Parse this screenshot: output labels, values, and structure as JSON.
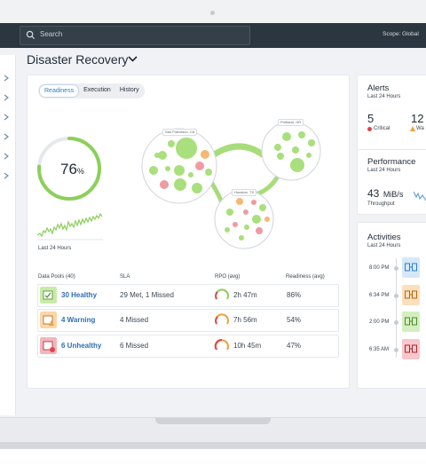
{
  "header": {
    "search_placeholder": "Search",
    "scope": "Scope: Global"
  },
  "page": {
    "title": "Disaster Recovery"
  },
  "tabs": [
    {
      "label": "Readiness",
      "active": true
    },
    {
      "label": "Execution",
      "active": false
    },
    {
      "label": "History",
      "active": false
    }
  ],
  "readiness": {
    "percent_value": "76",
    "percent_sign": "%",
    "percent": 76,
    "period_label": "Last 24 Hours"
  },
  "sites": [
    {
      "label": "San Francisco, CA"
    },
    {
      "label": "Portland, OR"
    },
    {
      "label": "Houston, TX"
    }
  ],
  "table": {
    "headers": [
      "Data Pools (40)",
      "SLA",
      "RPO (avg)",
      "Readiness (avg)"
    ],
    "rows": [
      {
        "name": "30 Healthy",
        "sla": "29 Met, 1 Missed",
        "rpo": "2h 47m",
        "readiness": "86%",
        "color": "#8ccf5a"
      },
      {
        "name": "4 Warning",
        "sla": "4 Missed",
        "rpo": "7h 56m",
        "readiness": "54%",
        "color": "#f0a040"
      },
      {
        "name": "6 Unhealthy",
        "sla": "6 Missed",
        "rpo": "10h 45m",
        "readiness": "47%",
        "color": "#e0454f"
      }
    ]
  },
  "alerts": {
    "title": "Alerts",
    "period": "Last 24 Hours",
    "critical_count": "5",
    "critical_label": "Critical",
    "warning_count": "12",
    "warning_label": "Wa"
  },
  "performance": {
    "title": "Performance",
    "period": "Last 24 Hours",
    "value": "43",
    "unit": "MiB/s",
    "label": "Throughput"
  },
  "activities": {
    "title": "Activities",
    "period": "Last 24 Hours",
    "items": [
      {
        "time": "8:00 PM"
      },
      {
        "time": "6:34 PM"
      },
      {
        "time": "2:00 PM"
      },
      {
        "time": "6:35 AM"
      }
    ]
  },
  "colors": {
    "healthy": "#8ccf5a",
    "warning": "#f0a040",
    "critical": "#e0454f",
    "accent": "#2d7fc4"
  }
}
